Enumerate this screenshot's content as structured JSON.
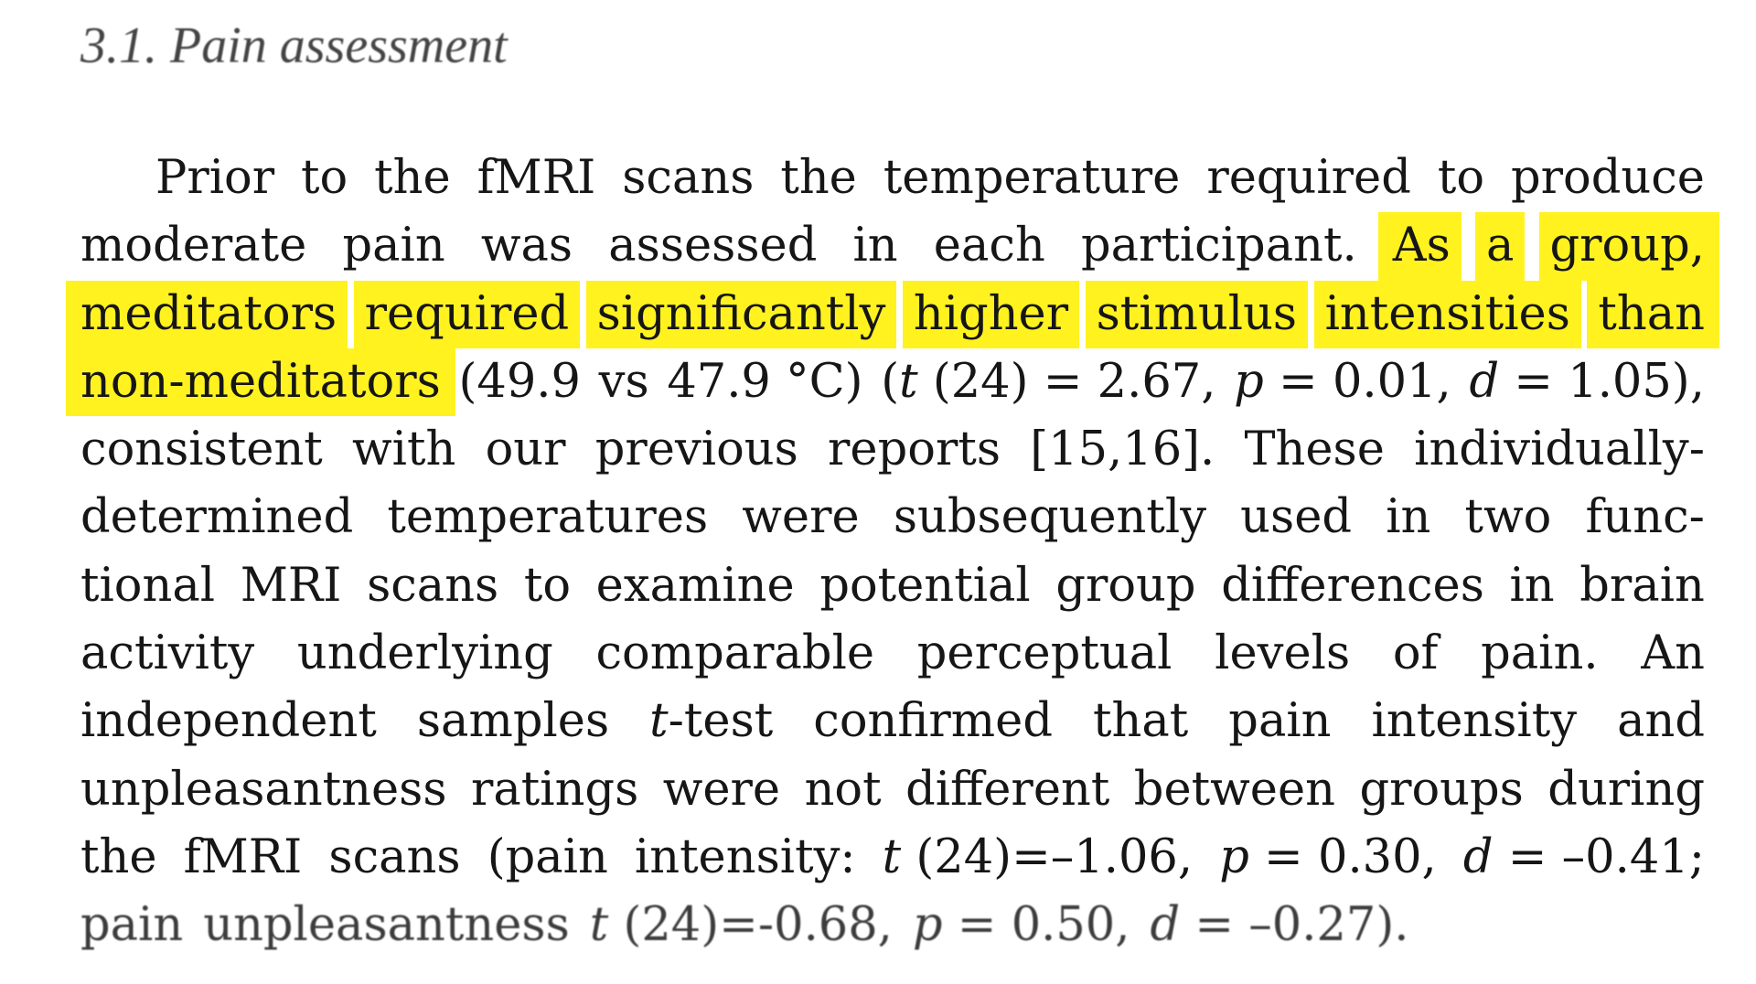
{
  "section": {
    "number": "3.1.",
    "title": "Pain assessment"
  },
  "highlight_color": "#fff21f",
  "lines": [
    [
      "Prior",
      "to",
      "the",
      "fMRI",
      "scans",
      "the",
      "temperature",
      "required",
      "to",
      "produce"
    ],
    [
      "moderate",
      "pain",
      "was",
      "assessed",
      "in",
      "each",
      "participant.",
      "As",
      "a",
      "group,"
    ],
    [
      "meditators",
      "required",
      "significantly",
      "higher",
      "stimulus",
      "intensities",
      "than"
    ],
    [
      "non-meditators",
      "(49.9",
      "vs",
      "47.9 °C)",
      "(t (24) = 2.67,",
      "p = 0.01,",
      "d = 1.05),"
    ],
    [
      "consistent",
      "with",
      "our",
      "previous",
      "reports",
      "[15,16].",
      "These",
      "individually-"
    ],
    [
      "determined",
      "temperatures",
      "were",
      "subsequently",
      "used",
      "in",
      "two",
      "func-"
    ],
    [
      "tional",
      "MRI",
      "scans",
      "to",
      "examine",
      "potential",
      "group",
      "differences",
      "in",
      "brain"
    ],
    [
      "activity",
      "underlying",
      "comparable",
      "perceptual",
      "levels",
      "of",
      "pain.",
      "An"
    ],
    [
      "independent",
      "samples",
      "t-test",
      "confirmed",
      "that",
      "pain",
      "intensity",
      "and"
    ],
    [
      "unpleasantness",
      "ratings",
      "were",
      "not",
      "different",
      "between",
      "groups",
      "during"
    ],
    [
      "the",
      "fMRI",
      "scans",
      "(pain",
      "intensity:",
      "t (24)=–1.06,",
      "p = 0.30,",
      "d = –0.41;"
    ],
    [
      "pain",
      "unpleasantness",
      "t (24)=-0.68,",
      "p = 0.50,",
      "d = –0.27)."
    ]
  ]
}
